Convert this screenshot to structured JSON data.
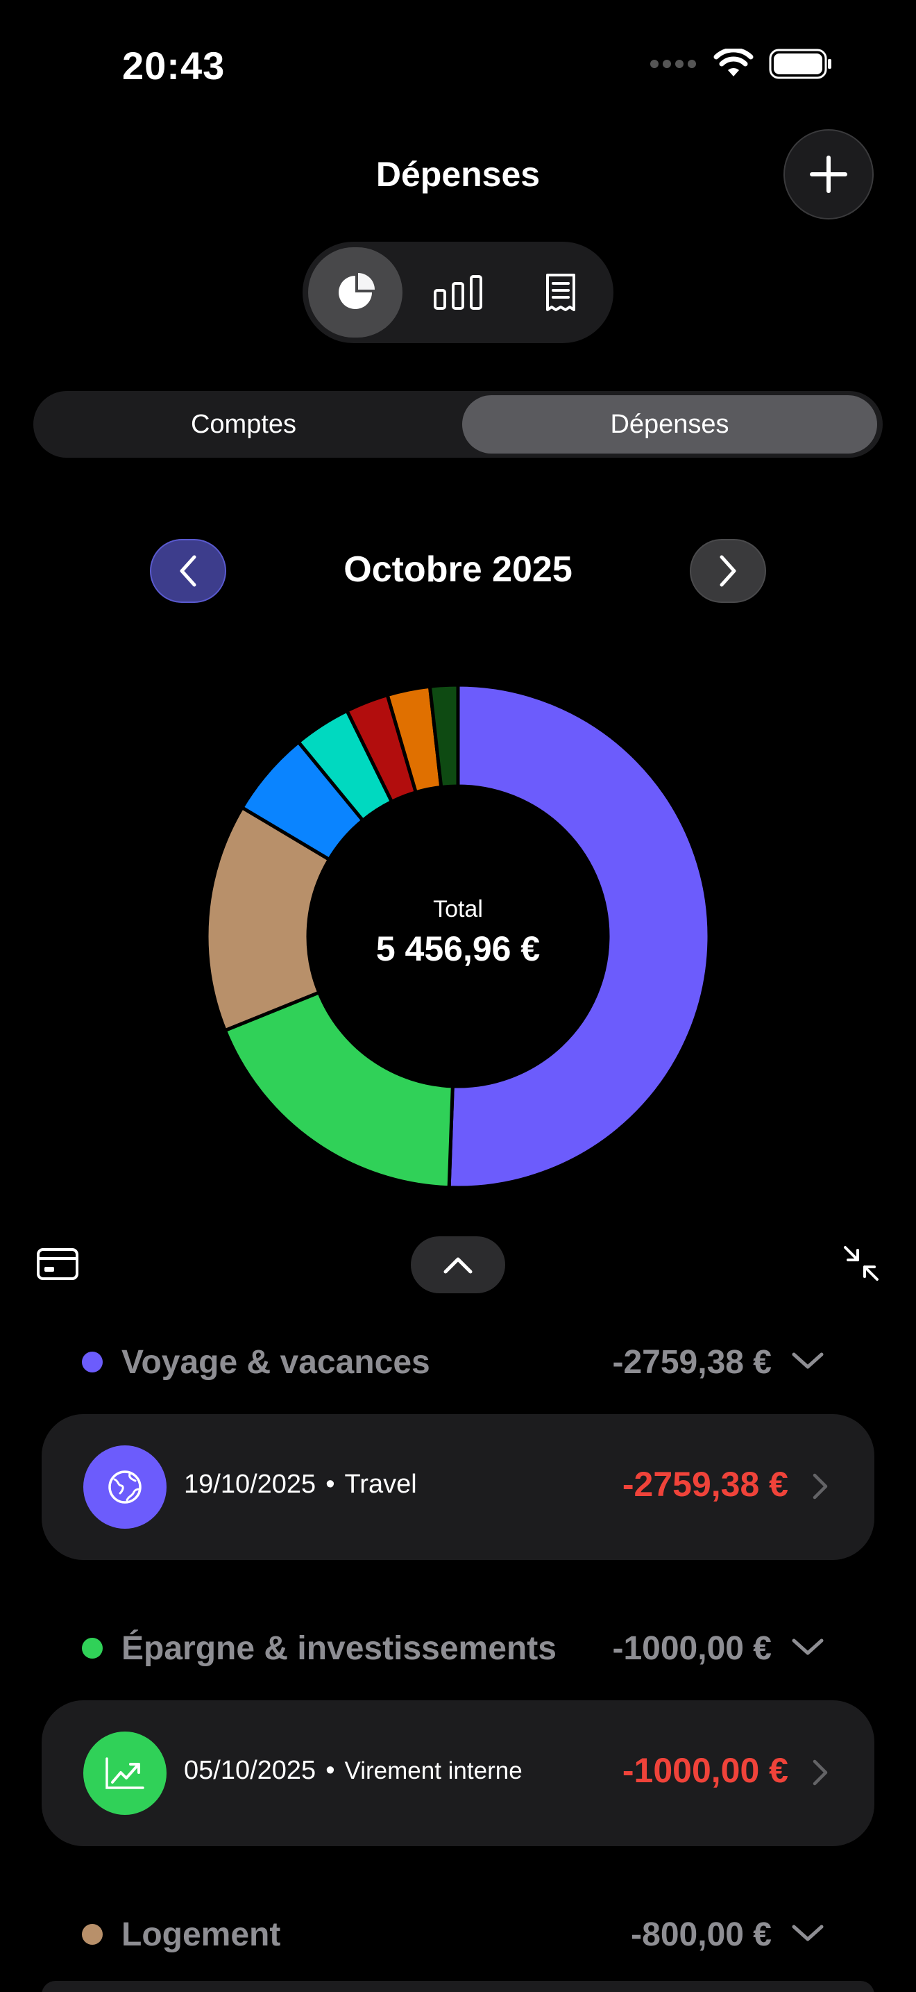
{
  "status": {
    "time": "20:43"
  },
  "header": {
    "title": "Dépenses"
  },
  "view_switcher": {
    "items": [
      "pie-chart-icon",
      "bar-chart-icon",
      "receipt-icon"
    ],
    "active": 0
  },
  "segmented": {
    "items": [
      "Comptes",
      "Dépenses"
    ],
    "active": 1
  },
  "month": {
    "label": "Octobre 2025"
  },
  "chart_data": {
    "type": "pie",
    "center_label": "Total",
    "center_value": "5 456,96 €",
    "slices": [
      {
        "value": 2759.38,
        "color": "#6c5cfc"
      },
      {
        "value": 1000.0,
        "color": "#30d158"
      },
      {
        "value": 800.0,
        "color": "#b8906a"
      },
      {
        "value": 300.0,
        "color": "#0a84ff"
      },
      {
        "value": 200.0,
        "color": "#00d9c0"
      },
      {
        "value": 150.0,
        "color": "#b20d0d"
      },
      {
        "value": 150.0,
        "color": "#e07000"
      },
      {
        "value": 97.58,
        "color": "#0e4a12"
      }
    ]
  },
  "categories": [
    {
      "name": "Voyage & vacances",
      "total": "-2759,38 €",
      "color": "#6c5cfc",
      "transactions": [
        {
          "date": "19/10/2025",
          "label": "Travel",
          "amount": "-2759,38 €",
          "icon": "globe-icon",
          "icon_color": "#6c5cfc"
        }
      ]
    },
    {
      "name": "Épargne & investissements",
      "total": "-1000,00 €",
      "color": "#30d158",
      "transactions": [
        {
          "date": "05/10/2025",
          "label": "Virement interne",
          "amount": "-1000,00 €",
          "icon": "trend-up-icon",
          "icon_color": "#30d158"
        }
      ]
    },
    {
      "name": "Logement",
      "total": "-800,00 €",
      "color": "#b8906a",
      "transactions": []
    }
  ]
}
